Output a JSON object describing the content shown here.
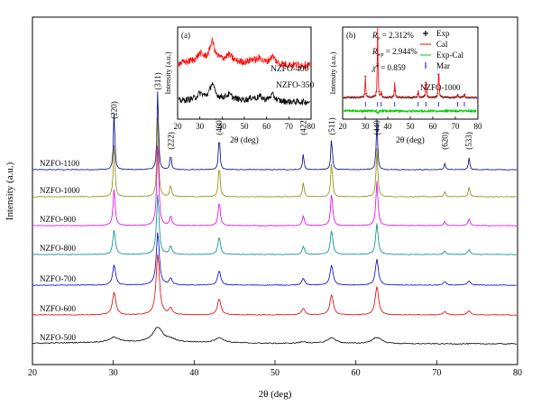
{
  "chart_data": [
    {
      "type": "line",
      "xlabel": "2θ (deg)",
      "ylabel": "Intensity (a.u.)",
      "xlim": [
        20,
        80
      ],
      "xticks": [
        20,
        30,
        40,
        50,
        60,
        70,
        80
      ],
      "grid": false,
      "peaks": [
        {
          "label": "(220)",
          "x": 30.1
        },
        {
          "label": "(311)",
          "x": 35.5
        },
        {
          "label": "(222)",
          "x": 37.1
        },
        {
          "label": "(400)",
          "x": 43.1
        },
        {
          "label": "(422)",
          "x": 53.5
        },
        {
          "label": "(511)",
          "x": 57.0
        },
        {
          "label": "(440)",
          "x": 62.6
        },
        {
          "label": "(620)",
          "x": 71.0
        },
        {
          "label": "(533)",
          "x": 74.0
        }
      ],
      "series": [
        {
          "name": "NZFO-1100",
          "color": "#00008b",
          "intensities": [
            0.72,
            1.0,
            0.2,
            0.45,
            0.2,
            0.42,
            0.62,
            0.08,
            0.15
          ]
        },
        {
          "name": "NZFO-1000",
          "color": "#8b8b00",
          "intensities": [
            0.65,
            1.0,
            0.15,
            0.4,
            0.18,
            0.45,
            0.6,
            0.06,
            0.12
          ]
        },
        {
          "name": "NZFO-900",
          "color": "#e000e0",
          "intensities": [
            0.45,
            1.0,
            0.12,
            0.3,
            0.12,
            0.4,
            0.55,
            0.05,
            0.08
          ]
        },
        {
          "name": "NZFO-800",
          "color": "#008b8b",
          "intensities": [
            0.3,
            0.75,
            0.1,
            0.22,
            0.1,
            0.3,
            0.38,
            0.04,
            0.06
          ]
        },
        {
          "name": "NZFO-700",
          "color": "#0000cc",
          "intensities": [
            0.25,
            0.65,
            0.08,
            0.18,
            0.08,
            0.25,
            0.32,
            0.04,
            0.05
          ]
        },
        {
          "name": "NZFO-600",
          "color": "#e00000",
          "intensities": [
            0.28,
            0.75,
            0.08,
            0.2,
            0.08,
            0.25,
            0.35,
            0.04,
            0.05
          ]
        },
        {
          "name": "NZFO-500",
          "color": "#000000",
          "intensities": [
            0.06,
            0.18,
            0.03,
            0.06,
            0.02,
            0.07,
            0.08,
            0.0,
            0.0
          ]
        }
      ]
    },
    {
      "type": "line",
      "panel_label": "(a)",
      "xlabel": "2θ (deg)",
      "ylabel": "Intensity (a.u.)",
      "xlim": [
        20,
        80
      ],
      "xticks": [
        20,
        30,
        40,
        50,
        60,
        70,
        80
      ],
      "series": [
        {
          "name": "NZFO-400",
          "color": "#ff0000"
        },
        {
          "name": "NZFO-350",
          "color": "#000000"
        }
      ]
    },
    {
      "type": "line",
      "panel_label": "(b)",
      "xlabel": "2θ (deg)",
      "ylabel": "Intensity (a.u.)",
      "xlim": [
        20,
        80
      ],
      "xticks": [
        20,
        30,
        40,
        50,
        60,
        70,
        80
      ],
      "sample_label": "NZFO-1000",
      "fit_stats": [
        {
          "symbol": "R",
          "sub": "p",
          "value": " = 2.312%"
        },
        {
          "symbol": "R",
          "sub": "wp",
          "value": " = 2.944%"
        },
        {
          "symbol": "χ",
          "sup": "2",
          "value": " = 0.859"
        }
      ],
      "legend": [
        {
          "label": "Exp",
          "color": "#000000",
          "marker": "plus"
        },
        {
          "label": "Cal",
          "color": "#ff0000",
          "marker": "line"
        },
        {
          "label": "Exp-Cal",
          "color": "#00cc00",
          "marker": "line"
        },
        {
          "label": "Mar",
          "color": "#0000ff",
          "marker": "tick"
        }
      ],
      "legend_position": "top-right"
    }
  ]
}
